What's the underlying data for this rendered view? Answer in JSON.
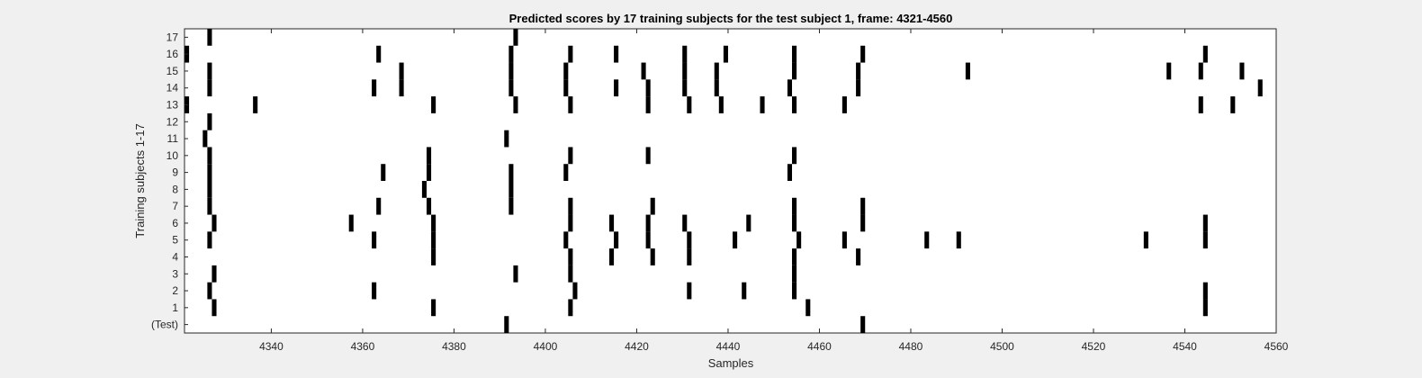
{
  "chart_data": {
    "type": "heatmap",
    "title": "Predicted scores by 17 training subjects for the test subject 1, frame: 4321-4560",
    "xlabel": "Samples",
    "ylabel": "Training subjects 1-17",
    "xlim": [
      4321,
      4560
    ],
    "x_ticks": [
      4340,
      4360,
      4380,
      4400,
      4420,
      4440,
      4460,
      4480,
      4500,
      4520,
      4540,
      4560
    ],
    "rows": [
      "(Test)",
      "1",
      "2",
      "3",
      "4",
      "5",
      "6",
      "7",
      "8",
      "9",
      "10",
      "11",
      "12",
      "13",
      "14",
      "15",
      "16",
      "17"
    ],
    "colors": {
      "mark": "#000000",
      "background": "#ffffff",
      "figure": "#f0f0f0"
    },
    "events": [
      [
        4391,
        4469
      ],
      [
        4327,
        4375,
        4405,
        4457,
        4544
      ],
      [
        4326,
        4362,
        4406,
        4431,
        4443,
        4454,
        4544
      ],
      [
        4327,
        4393,
        4405,
        4454
      ],
      [
        4375,
        4405,
        4414,
        4423,
        4431,
        4454,
        4468
      ],
      [
        4326,
        4362,
        4375,
        4404,
        4415,
        4422,
        4431,
        4441,
        4455,
        4465,
        4483,
        4490,
        4531,
        4544
      ],
      [
        4327,
        4357,
        4375,
        4405,
        4414,
        4422,
        4430,
        4444,
        4454,
        4469,
        4544
      ],
      [
        4326,
        4363,
        4374,
        4392,
        4405,
        4423,
        4454,
        4469
      ],
      [
        4326,
        4373,
        4392
      ],
      [
        4326,
        4364,
        4374,
        4392,
        4404,
        4453
      ],
      [
        4326,
        4374,
        4405,
        4422,
        4454
      ],
      [
        4325,
        4391
      ],
      [
        4326
      ],
      [
        4321,
        4336,
        4375,
        4393,
        4405,
        4422,
        4431,
        4438,
        4447,
        4454,
        4465,
        4543,
        4550
      ],
      [
        4326,
        4362,
        4368,
        4392,
        4404,
        4415,
        4422,
        4430,
        4437,
        4453,
        4468,
        4556
      ],
      [
        4326,
        4368,
        4392,
        4404,
        4421,
        4430,
        4437,
        4454,
        4468,
        4492,
        4536,
        4543,
        4552
      ],
      [
        4321,
        4363,
        4392,
        4405,
        4415,
        4430,
        4439,
        4454,
        4469,
        4544
      ],
      [
        4326,
        4393
      ]
    ]
  }
}
